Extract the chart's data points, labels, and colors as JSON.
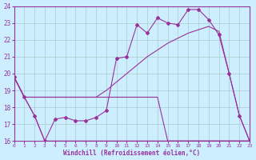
{
  "xlabel": "Windchill (Refroidissement éolien,°C)",
  "background_color": "#cceeff",
  "grid_color": "#aaddcc",
  "line_color": "#993399",
  "xlim": [
    0,
    23
  ],
  "ylim": [
    16,
    24
  ],
  "yticks": [
    16,
    17,
    18,
    19,
    20,
    21,
    22,
    23,
    24
  ],
  "xticks": [
    0,
    1,
    2,
    3,
    4,
    5,
    6,
    7,
    8,
    9,
    10,
    11,
    12,
    13,
    14,
    15,
    16,
    17,
    18,
    19,
    20,
    21,
    22,
    23
  ],
  "line1_x": [
    0,
    1,
    2,
    3,
    4,
    5,
    6,
    7,
    8,
    9,
    10,
    11,
    12,
    13,
    14,
    15,
    16,
    17,
    18,
    19,
    20,
    21,
    22,
    23
  ],
  "line1_y": [
    19.8,
    18.6,
    17.5,
    16.0,
    17.3,
    17.4,
    17.2,
    17.2,
    17.4,
    17.8,
    20.9,
    21.0,
    22.9,
    22.4,
    23.3,
    23.0,
    22.9,
    23.8,
    23.8,
    23.2,
    22.3,
    20.0,
    17.5,
    16.0
  ],
  "line2_x": [
    0,
    1,
    2,
    3,
    4,
    5,
    6,
    7,
    8,
    9,
    10,
    11,
    12,
    13,
    14,
    15,
    16,
    17,
    18,
    19,
    20,
    21,
    22,
    23
  ],
  "line2_y": [
    19.8,
    18.6,
    18.6,
    18.6,
    18.6,
    18.6,
    18.6,
    18.6,
    18.6,
    19.0,
    19.5,
    20.0,
    20.5,
    21.0,
    21.4,
    21.8,
    22.1,
    22.4,
    22.6,
    22.8,
    22.5,
    20.0,
    17.5,
    16.0
  ],
  "line3_x": [
    0,
    1,
    2,
    3,
    4,
    5,
    6,
    7,
    8,
    9,
    10,
    11,
    12,
    13,
    14,
    15,
    16,
    17,
    18,
    19,
    20,
    21,
    22,
    23
  ],
  "line3_y": [
    19.8,
    18.6,
    18.6,
    18.6,
    18.6,
    18.6,
    18.6,
    18.6,
    18.6,
    18.6,
    18.6,
    18.6,
    18.6,
    18.6,
    18.6,
    16.0,
    16.0,
    16.0,
    16.0,
    16.0,
    16.0,
    16.0,
    16.0,
    16.0
  ],
  "line4_x": [
    0,
    1,
    2,
    3,
    4,
    5,
    6,
    7,
    8,
    9,
    10,
    11,
    12,
    13,
    14,
    15,
    16,
    17,
    18,
    19,
    20,
    21,
    22,
    23
  ],
  "line4_y": [
    19.8,
    18.6,
    17.5,
    16.0,
    16.0,
    16.0,
    16.0,
    16.0,
    16.0,
    16.0,
    16.0,
    16.0,
    16.0,
    16.0,
    16.0,
    16.0,
    16.0,
    16.0,
    16.0,
    16.0,
    16.0,
    16.0,
    16.0,
    16.0
  ]
}
